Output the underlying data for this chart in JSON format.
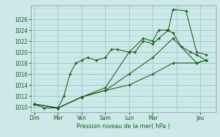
{
  "title": "",
  "xlabel": "Pression niveau de la mer( hPa )",
  "background_color": "#cce8e8",
  "grid_color": "#99cccc",
  "line_color": "#1a5c1a",
  "ylim": [
    1009.0,
    1028.5
  ],
  "yticks": [
    1010,
    1012,
    1014,
    1016,
    1018,
    1020,
    1022,
    1024,
    1026
  ],
  "day_labels": [
    "Dim",
    "Mer",
    "Ven",
    "Sam",
    "Lun",
    "Mar",
    "Jeu"
  ],
  "day_positions": [
    0,
    1,
    2,
    3,
    4,
    5,
    7
  ],
  "xlim": [
    -0.15,
    7.65
  ],
  "line1_x": [
    0.0,
    0.4,
    1.0,
    1.25,
    1.5,
    1.75,
    2.0,
    2.25,
    2.6,
    3.0,
    3.25,
    3.5,
    4.0,
    4.25,
    4.6,
    5.0,
    5.25,
    5.65,
    5.85,
    6.4,
    6.85,
    7.25
  ],
  "line1_y": [
    1010.5,
    1009.8,
    1009.8,
    1012.0,
    1016.0,
    1018.0,
    1018.5,
    1019.0,
    1018.5,
    1019.0,
    1020.5,
    1020.5,
    1020.0,
    1020.0,
    1022.0,
    1021.5,
    1022.5,
    1024.0,
    1027.8,
    1027.5,
    1020.0,
    1019.5
  ],
  "line2_x": [
    0.0,
    1.0,
    2.0,
    3.0,
    4.0,
    4.6,
    5.0,
    5.25,
    5.6,
    5.85,
    6.2,
    6.6,
    6.85,
    7.25
  ],
  "line2_y": [
    1010.5,
    1009.8,
    1011.8,
    1013.5,
    1020.0,
    1022.5,
    1022.0,
    1024.0,
    1024.0,
    1023.5,
    1021.0,
    1020.0,
    1019.5,
    1018.5
  ],
  "line3_x": [
    0.0,
    1.0,
    2.0,
    3.0,
    4.0,
    5.0,
    5.85,
    6.85,
    7.25
  ],
  "line3_y": [
    1010.5,
    1009.8,
    1011.8,
    1013.0,
    1016.0,
    1019.0,
    1022.5,
    1018.0,
    1018.5
  ],
  "line4_x": [
    0.0,
    1.0,
    2.0,
    3.0,
    4.0,
    5.0,
    5.85,
    6.85,
    7.25
  ],
  "line4_y": [
    1010.5,
    1009.8,
    1011.8,
    1013.0,
    1014.0,
    1016.0,
    1018.0,
    1018.0,
    1018.5
  ]
}
